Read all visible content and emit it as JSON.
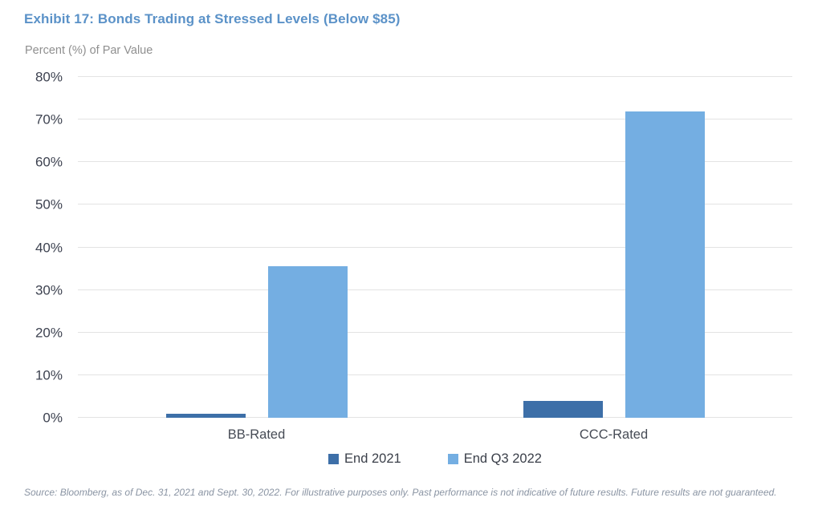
{
  "header": {
    "title": "Exhibit 17: Bonds Trading at Stressed Levels (Below $85)",
    "subtitle": "Percent (%) of Par Value"
  },
  "chart_data": {
    "type": "bar",
    "title": "Exhibit 17: Bonds Trading at Stressed Levels (Below $85)",
    "ylabel": "Percent (%) of Par Value",
    "xlabel": "",
    "categories": [
      "BB-Rated",
      "CCC-Rated"
    ],
    "series": [
      {
        "name": "End 2021",
        "color": "#3D6FA8",
        "values": [
          1,
          4
        ]
      },
      {
        "name": "End Q3 2022",
        "color": "#74AEE2",
        "values": [
          35.5,
          72
        ]
      }
    ],
    "ylim": [
      0,
      80
    ],
    "ytick_step": 10,
    "ytick_suffix": "%",
    "grid": true,
    "legend_position": "bottom"
  },
  "footer": {
    "source": "Source: Bloomberg, as of Dec. 31, 2021 and Sept. 30, 2022. For illustrative purposes only. Past performance is not indicative of future results. Future results are not guaranteed."
  },
  "colors": {
    "title_text": "#5B92C8",
    "subtitle_text": "#8F8F8F",
    "gridline": "#E3E3E3",
    "ytick_text": "#3D4250",
    "xtick_text": "#464B55",
    "legend_text": "#3A3F49",
    "source_text": "#8A94A3",
    "series_end_2021": "#3D6FA8",
    "series_end_q3_2022": "#74AEE2"
  }
}
